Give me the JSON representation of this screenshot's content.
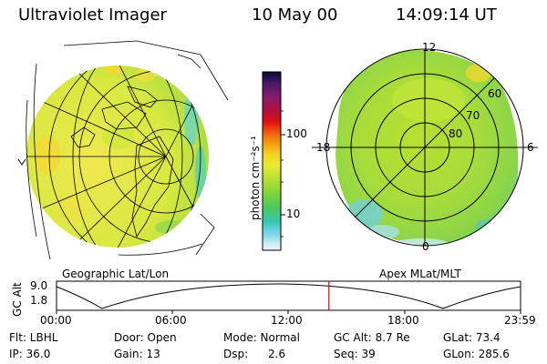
{
  "header": {
    "instrument": "Ultraviolet Imager",
    "date": "10 May 00",
    "time": "14:09:14 UT"
  },
  "left_panel": {
    "caption": "Geographic Lat/Lon"
  },
  "right_panel": {
    "caption": "Apex MLat/MLT",
    "mlt_labels": [
      "12",
      "18",
      "6",
      "0"
    ],
    "mlat_labels": [
      "60",
      "70",
      "80"
    ]
  },
  "colorbar": {
    "unit_label": "photon cm⁻²s⁻¹",
    "tick_labels": [
      "100",
      "10"
    ],
    "colors": [
      "#0a0a3a",
      "#4b1a6a",
      "#8a1a6a",
      "#b0103a",
      "#e01010",
      "#f25a10",
      "#f59b10",
      "#f5d020",
      "#e8ec30",
      "#b8e030",
      "#7ed63c",
      "#4ec85a",
      "#36c8b0",
      "#7ad8ec",
      "#c8ecf4",
      "#f0f4f8"
    ]
  },
  "altitude_plot": {
    "ylabel": "GC Alt",
    "ytick_labels": [
      "9.0",
      "1.8"
    ],
    "xtick_labels": [
      "00:00",
      "06:00",
      "12:00",
      "18:00",
      "23:59"
    ],
    "current_time_fraction": 0.587,
    "marker_color": "#e00000"
  },
  "status": {
    "filter": "Flt: LBHL",
    "door": "Door: Open",
    "mode": "Mode: Normal",
    "gc_alt": "GC Alt: 8.7 Re",
    "glat": "GLat: 73.4",
    "ip": "IP: 36.0",
    "gain": "Gain: 13",
    "dsp_label": "Dsp:",
    "dsp_value": "2.6",
    "seq": "Seq: 39",
    "glon": "GLon: 285.6"
  }
}
